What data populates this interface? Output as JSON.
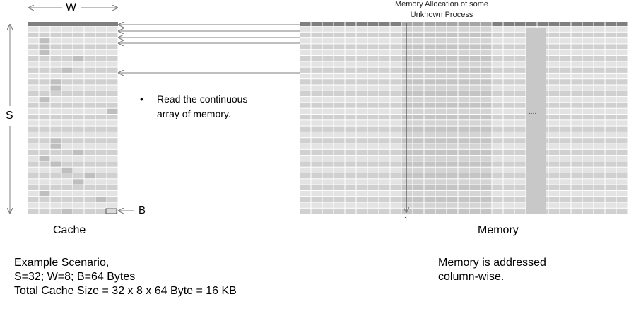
{
  "labels": {
    "width_label": "W",
    "sets_label": "S",
    "block_label": "B",
    "cache_label": "Cache",
    "memory_label": "Memory",
    "memory_title_line1": "Memory Allocation of some",
    "memory_title_line2": "Unknown Process",
    "marker_label": "1",
    "ellipsis": "....",
    "bullet_char": "•",
    "bullet_line1": "Read the continuous",
    "bullet_line2": "array of memory."
  },
  "scenario": {
    "line1": "Example Scenario,",
    "line2": "S=32; W=8; B=64 Bytes",
    "line3": "Total Cache Size = 32 x 8 x 64 Byte = 16 KB"
  },
  "memory_note": {
    "line1": "Memory is addressed",
    "line2": "column-wise."
  },
  "colors": {
    "header": "#7f7f7f",
    "cell_light": "#e3e3e3",
    "cell_mid": "#d0d0d0",
    "cell_dark": "#bfbfbf",
    "arrow": "#7f7f7f"
  }
}
